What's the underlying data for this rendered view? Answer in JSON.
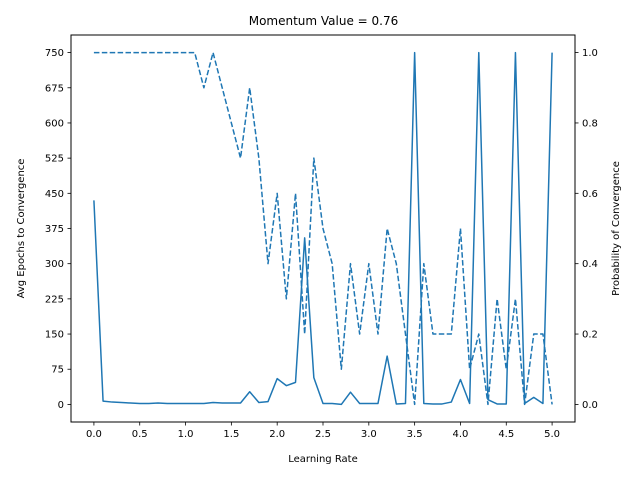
{
  "chart_data": {
    "type": "line",
    "title": "Momentum Value = 0.76",
    "xlabel": "Learning Rate",
    "ylabel": "Avg Epochs to Convergence",
    "y2label": "Probability of Convergence",
    "xlim": [
      -0.25,
      5.25
    ],
    "ylim": [
      -37.5,
      787.5
    ],
    "y2lim": [
      -0.05,
      1.05
    ],
    "xticks": [
      "0.0",
      "0.5",
      "1.0",
      "1.5",
      "2.0",
      "2.5",
      "3.0",
      "3.5",
      "4.0",
      "4.5",
      "5.0"
    ],
    "yticks": [
      "0",
      "75",
      "150",
      "225",
      "300",
      "375",
      "450",
      "525",
      "600",
      "675",
      "750"
    ],
    "y2ticks": [
      "0.0",
      "0.2",
      "0.4",
      "0.6",
      "0.8",
      "1.0"
    ],
    "color": "#1f77b4",
    "grid": false,
    "x": [
      0.0,
      0.1,
      0.2,
      0.3,
      0.4,
      0.5,
      0.6,
      0.7,
      0.8,
      0.9,
      1.0,
      1.1,
      1.2,
      1.3,
      1.4,
      1.5,
      1.6,
      1.7,
      1.8,
      1.9,
      2.0,
      2.1,
      2.2,
      2.3,
      2.4,
      2.5,
      2.6,
      2.7,
      2.8,
      2.9,
      3.0,
      3.1,
      3.2,
      3.3,
      3.4,
      3.5,
      3.6,
      3.7,
      3.8,
      3.9,
      4.0,
      4.1,
      4.2,
      4.3,
      4.4,
      4.5,
      4.6,
      4.7,
      4.8,
      4.9,
      5.0
    ],
    "series": [
      {
        "axis": "left",
        "style": "solid",
        "values": [
          435,
          7,
          5,
          4,
          3,
          2,
          2,
          3,
          2,
          2,
          2,
          2,
          2,
          4,
          3,
          3,
          3,
          27,
          4,
          6,
          55,
          40,
          47,
          355,
          57,
          2,
          2,
          0,
          26,
          2,
          2,
          2,
          103,
          1,
          2,
          750,
          2,
          1,
          1,
          5,
          53,
          2,
          750,
          10,
          1,
          1,
          750,
          2,
          15,
          2,
          750
        ]
      },
      {
        "axis": "right",
        "style": "dashed",
        "values": [
          1.0,
          1.0,
          1.0,
          1.0,
          1.0,
          1.0,
          1.0,
          1.0,
          1.0,
          1.0,
          1.0,
          1.0,
          0.9,
          1.0,
          0.9,
          0.8,
          0.7,
          0.9,
          0.7,
          0.4,
          0.6,
          0.3,
          0.6,
          0.2,
          0.7,
          0.5,
          0.4,
          0.1,
          0.4,
          0.2,
          0.4,
          0.2,
          0.5,
          0.4,
          0.2,
          0.0,
          0.4,
          0.2,
          0.2,
          0.2,
          0.5,
          0.1,
          0.2,
          0.0,
          0.3,
          0.1,
          0.3,
          0.0,
          0.2,
          0.2,
          0.0
        ]
      }
    ]
  }
}
